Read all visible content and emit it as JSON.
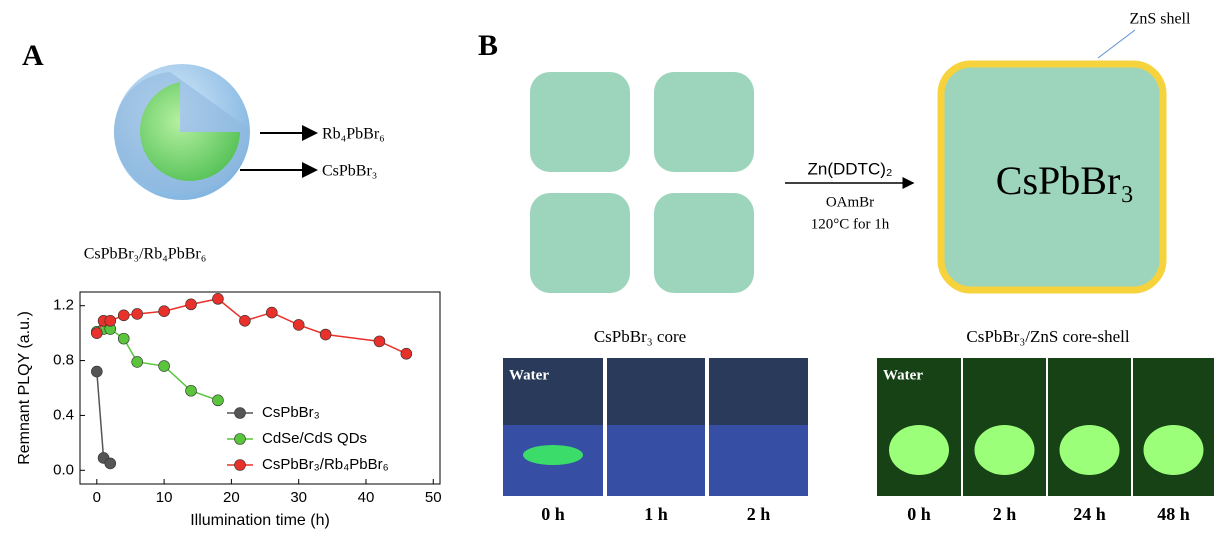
{
  "panels": {
    "a": "A",
    "b": "B"
  },
  "panel_a": {
    "shell_label": "Rb₄PbBr₆",
    "core_label": "CsPbBr₃",
    "caption": "CsPbBr₃/Rb₄PbBr₆"
  },
  "chart_data": {
    "type": "line",
    "x_label": "Illumination time (h)",
    "y_label": "Remnant PLQY (a.u.)",
    "xlim": [
      -2.5,
      51
    ],
    "ylim": [
      -0.1,
      1.3
    ],
    "xticks": [
      0,
      10,
      20,
      30,
      40,
      50
    ],
    "yticks": [
      {
        "value": 0,
        "label": "0.0"
      },
      0.4,
      0.8,
      1.2
    ],
    "legend": "lower-right",
    "grid": false,
    "series": [
      {
        "name": "CsPbBr₃",
        "color": "#555555",
        "x": [
          0,
          1,
          2
        ],
        "values": [
          0.72,
          0.09,
          0.05
        ]
      },
      {
        "name": "CdSe/CdS QDs",
        "color": "#5ac43c",
        "x": [
          0,
          1,
          2,
          4,
          6,
          10,
          14,
          18
        ],
        "values": [
          1.01,
          1.03,
          1.03,
          0.96,
          0.79,
          0.76,
          0.58,
          0.51
        ]
      },
      {
        "name": "CsPbBr₃/Rb₄PbBr₆",
        "color": "#e8312a",
        "x": [
          0,
          1,
          2,
          4,
          6,
          10,
          14,
          18,
          22,
          26,
          30,
          34,
          42,
          46
        ],
        "values": [
          1.0,
          1.09,
          1.09,
          1.13,
          1.14,
          1.16,
          1.21,
          1.25,
          1.09,
          1.15,
          1.06,
          0.99,
          0.94,
          0.85
        ]
      }
    ]
  },
  "panel_b": {
    "shell_label": "ZnS shell",
    "reagent": "Zn(DDTC)₂",
    "ligand": "OAmBr",
    "condition": "120°C for 1h",
    "product": "CsPbBr₃",
    "core_title": "CsPbBr₃ core",
    "core_shell_title": "CsPbBr₃/ZnS core-shell",
    "core_photos": {
      "medium": "Water",
      "times": [
        "0 h",
        "1 h",
        "2 h"
      ]
    },
    "core_shell_photos": {
      "medium": "Water",
      "times": [
        "0 h",
        "2 h",
        "24 h",
        "48 h"
      ]
    }
  }
}
